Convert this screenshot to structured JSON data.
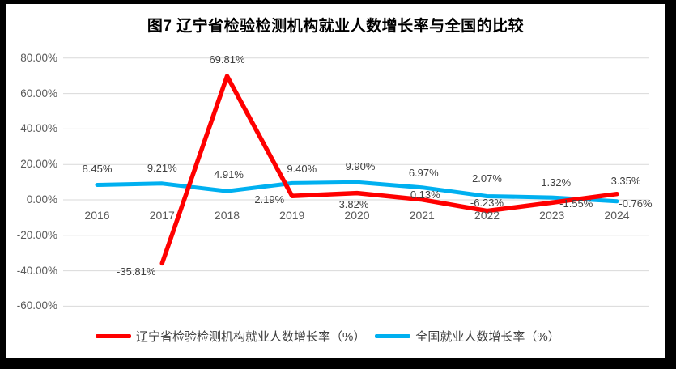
{
  "window": {
    "frame_background": "#000000",
    "panel_background": "#ffffff"
  },
  "chart_data": {
    "type": "line",
    "title": "图7 辽宁省检验检测机构就业人数增长率与全国的比较",
    "categories": [
      "2016",
      "2017",
      "2018",
      "2019",
      "2020",
      "2021",
      "2022",
      "2023",
      "2024"
    ],
    "series": [
      {
        "name": "辽宁省检验检测机构就业人数增长率（%）",
        "color": "#FF0000",
        "values": [
          null,
          -35.81,
          69.81,
          2.19,
          3.82,
          0.13,
          -6.23,
          -1.55,
          3.35
        ]
      },
      {
        "name": "全国就业人数增长率（%）",
        "color": "#00B0F0",
        "values": [
          8.45,
          9.21,
          4.91,
          9.4,
          9.9,
          6.97,
          2.07,
          1.32,
          -0.76
        ]
      }
    ],
    "y_axis": {
      "ticks": [
        {
          "label": "80.00%",
          "value": 80
        },
        {
          "label": "60.00%",
          "value": 60
        },
        {
          "label": "40.00%",
          "value": 40
        },
        {
          "label": "20.00%",
          "value": 20
        },
        {
          "label": "0.00%",
          "value": 0
        },
        {
          "label": "-20.00%",
          "value": -20
        },
        {
          "label": "-40.00%",
          "value": -40
        },
        {
          "label": "-60.00%",
          "value": -60
        }
      ],
      "min": -60,
      "max": 80,
      "step": 20
    },
    "grid": true,
    "data_labels": true,
    "label_format": "0.00%",
    "legend_position": "bottom",
    "colors": {
      "gridline": "#D9D9D9",
      "axis_text": "#595959",
      "data_label_text": "#404040",
      "title_text": "#000000"
    }
  }
}
